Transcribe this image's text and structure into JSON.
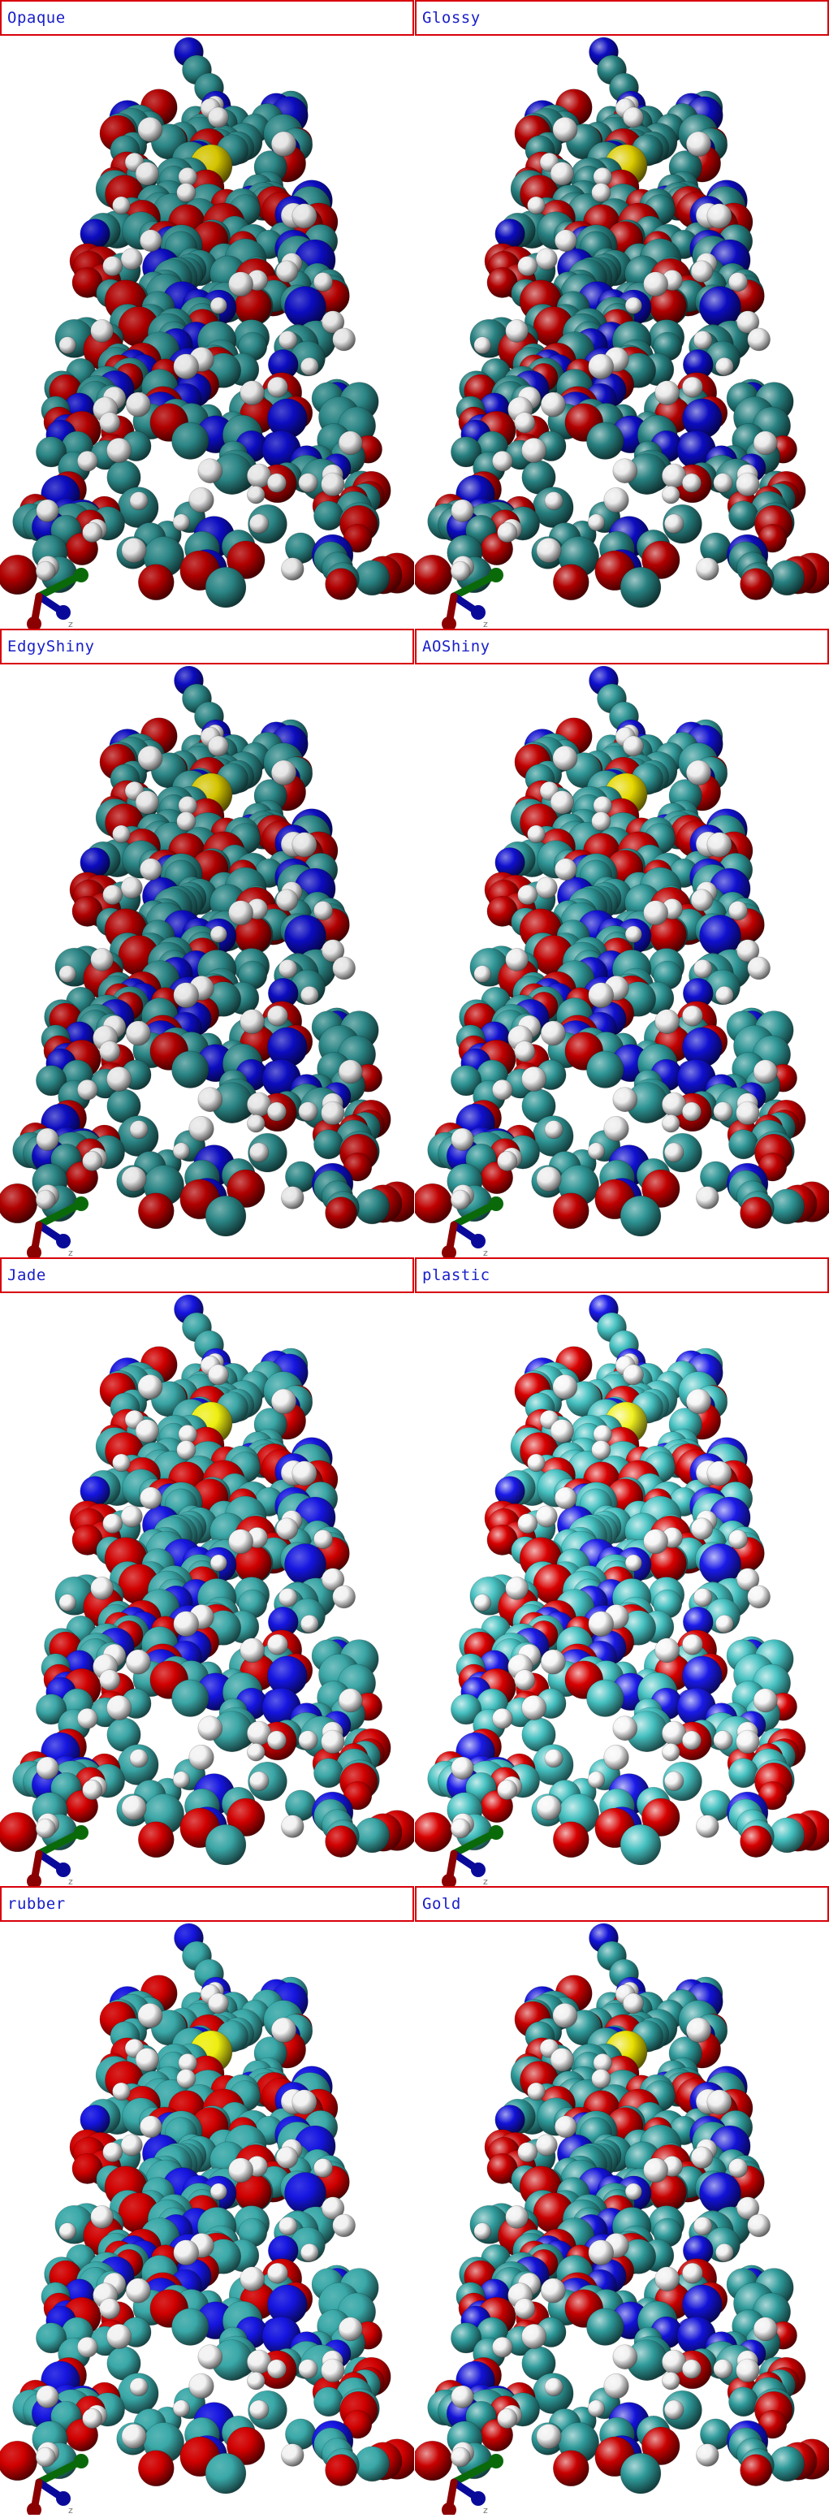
{
  "panels": [
    {
      "label": "Opaque",
      "material": "opaque"
    },
    {
      "label": "Glossy",
      "material": "glossy"
    },
    {
      "label": "EdgyShiny",
      "material": "edgy"
    },
    {
      "label": "AOShiny",
      "material": "aoshiny"
    },
    {
      "label": "Jade",
      "material": "jade"
    },
    {
      "label": "plastic",
      "material": "plastic"
    },
    {
      "label": "rubber",
      "material": "rubber"
    },
    {
      "label": "Gold",
      "material": "gold"
    }
  ],
  "axis": {
    "z_label": "z"
  },
  "colors": {
    "label_border": "#d8000a",
    "label_text": "#1a20c8",
    "carbon": "#2e8f8f",
    "oxygen": "#c00000",
    "nitrogen": "#1010c8",
    "hydrogen": "#e8e8e8",
    "sulfur": "#e0d000",
    "axis_x": "#8b0000",
    "axis_y": "#0a6a0a",
    "axis_z": "#0a0a9a"
  }
}
